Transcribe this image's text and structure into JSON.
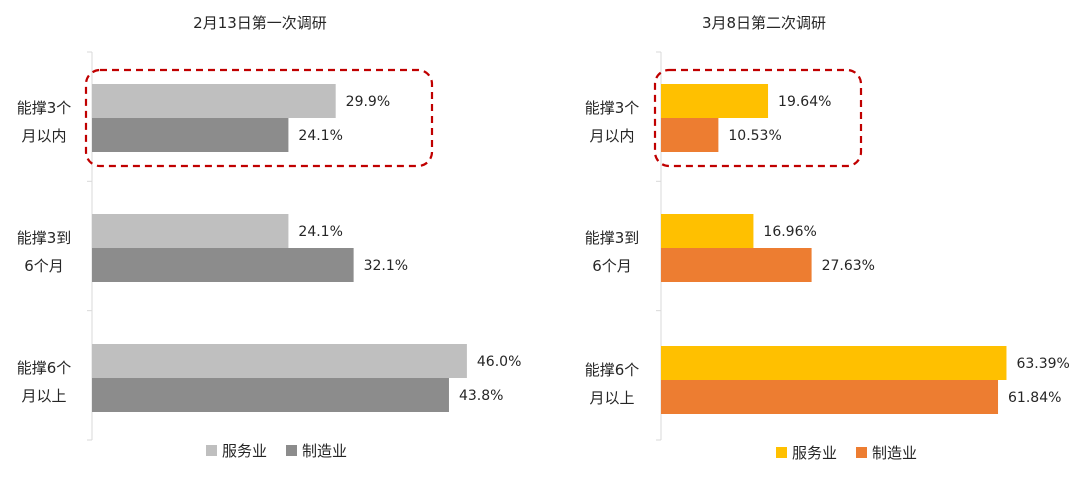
{
  "chart_data": [
    {
      "type": "bar",
      "orientation": "horizontal",
      "title": "2月13日第一次调研",
      "categories": [
        [
          "能撑3个",
          "月以内"
        ],
        [
          "能撑3到",
          "6个月"
        ],
        [
          "能撑6个",
          "月以上"
        ]
      ],
      "series": [
        {
          "name": "服务业",
          "values": [
            29.9,
            24.1,
            46.0
          ],
          "labels": [
            "29.9%",
            "24.1%",
            "46.0%"
          ],
          "color": "#bfbfbf"
        },
        {
          "name": "制造业",
          "values": [
            24.1,
            32.1,
            43.8
          ],
          "labels": [
            "24.1%",
            "32.1%",
            "43.8%"
          ],
          "color": "#8c8c8c"
        }
      ],
      "xlim": [
        0,
        50
      ],
      "unit": "%",
      "grid": false,
      "legend_position": "bottom",
      "highlight": {
        "category_index": 0,
        "style": "dashed-box",
        "color": "#c00000"
      }
    },
    {
      "type": "bar",
      "orientation": "horizontal",
      "title": "3月8日第二次调研",
      "categories": [
        [
          "能撑3个",
          "月以内"
        ],
        [
          "能撑3到",
          "6个月"
        ],
        [
          "能撑6个",
          "月以上"
        ]
      ],
      "series": [
        {
          "name": "服务业",
          "values": [
            19.64,
            16.96,
            63.39
          ],
          "labels": [
            "19.64%",
            "16.96%",
            "63.39%"
          ],
          "color": "#ffc000"
        },
        {
          "name": "制造业",
          "values": [
            10.53,
            27.63,
            61.84
          ],
          "labels": [
            "10.53%",
            "27.63%",
            "61.84%"
          ],
          "color": "#ed7d31"
        }
      ],
      "xlim": [
        0,
        70
      ],
      "unit": "%",
      "grid": false,
      "legend_position": "bottom",
      "highlight": {
        "category_index": 0,
        "style": "dashed-box",
        "color": "#c00000"
      }
    }
  ]
}
